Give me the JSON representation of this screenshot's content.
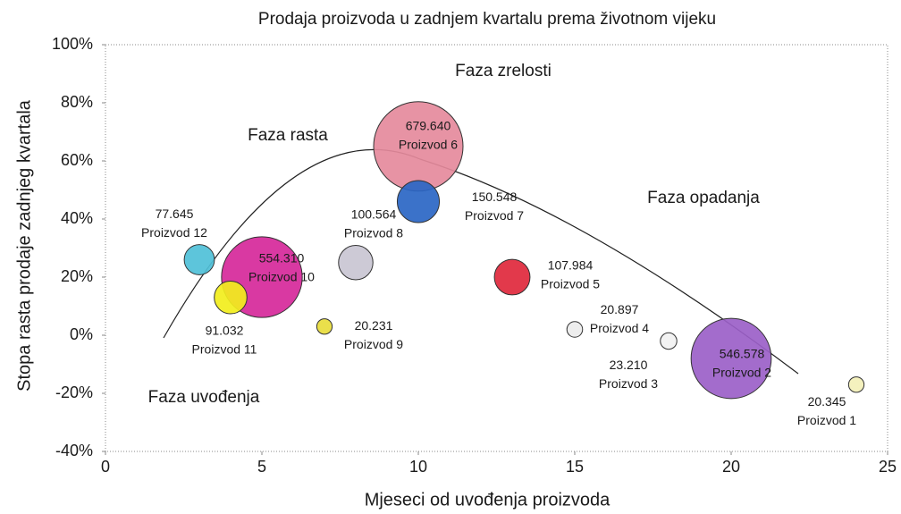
{
  "chart_data": {
    "type": "bubble",
    "title": "Prodaja proizvoda u zadnjem kvartalu prema životnom vijeku",
    "x_label": "Mjeseci od uvođenja proizvoda",
    "y_label": "Stopa rasta prodaje zadnjeg kvartala",
    "annotations": [
      "Faza zrelosti",
      "Faza rasta",
      "Faza opadanja",
      "Faza uvođenja"
    ],
    "xlim": [
      0,
      25
    ],
    "xticks": [
      0,
      5,
      10,
      15,
      20,
      25
    ],
    "ylim": [
      -40,
      100
    ],
    "yticks": [
      {
        "value": -40,
        "label": "-40%"
      },
      {
        "value": -20,
        "label": "-20%"
      },
      {
        "value": 0,
        "label": "0%"
      },
      {
        "value": 20,
        "label": "20%"
      },
      {
        "value": 40,
        "label": "40%"
      },
      {
        "value": 60,
        "label": "60%"
      },
      {
        "value": 80,
        "label": "80%"
      },
      {
        "value": 100,
        "label": "100%"
      }
    ],
    "series": [
      {
        "name": "Proizvod 1",
        "color": "#f3f0b8",
        "x": [
          24
        ],
        "values": [
          -17
        ],
        "sizes": [
          20345
        ],
        "size_labels": [
          "20.345"
        ]
      },
      {
        "name": "Proizvod 2",
        "color": "#9b5fc8",
        "x": [
          20
        ],
        "values": [
          -8
        ],
        "sizes": [
          546578
        ],
        "size_labels": [
          "546.578"
        ]
      },
      {
        "name": "Proizvod 3",
        "color": "#f2f2f2",
        "x": [
          18
        ],
        "values": [
          -2
        ],
        "sizes": [
          23210
        ],
        "size_labels": [
          "23.210"
        ]
      },
      {
        "name": "Proizvod 4",
        "color": "#ececec",
        "x": [
          15
        ],
        "values": [
          2
        ],
        "sizes": [
          20897
        ],
        "size_labels": [
          "20.897"
        ]
      },
      {
        "name": "Proizvod 5",
        "color": "#e0283c",
        "x": [
          13
        ],
        "values": [
          20
        ],
        "sizes": [
          107984
        ],
        "size_labels": [
          "107.984"
        ]
      },
      {
        "name": "Proizvod 6",
        "color": "#e58a9c",
        "x": [
          10
        ],
        "values": [
          65
        ],
        "sizes": [
          679640
        ],
        "size_labels": [
          "679.640"
        ]
      },
      {
        "name": "Proizvod 7",
        "color": "#2a66c4",
        "x": [
          10
        ],
        "values": [
          46
        ],
        "sizes": [
          150548
        ],
        "size_labels": [
          "150.548"
        ]
      },
      {
        "name": "Proizvod 8",
        "color": "#c9c6d2",
        "x": [
          8
        ],
        "values": [
          25
        ],
        "sizes": [
          100564
        ],
        "size_labels": [
          "100.564"
        ]
      },
      {
        "name": "Proizvod 9",
        "color": "#e8dc3c",
        "x": [
          7
        ],
        "values": [
          3
        ],
        "sizes": [
          20231
        ],
        "size_labels": [
          "20.231"
        ]
      },
      {
        "name": "Proizvod 10",
        "color": "#d6289a",
        "x": [
          5
        ],
        "values": [
          20
        ],
        "sizes": [
          554310
        ],
        "size_labels": [
          "554.310"
        ]
      },
      {
        "name": "Proizvod 11",
        "color": "#f2ee1c",
        "x": [
          4
        ],
        "values": [
          13
        ],
        "sizes": [
          91032
        ],
        "size_labels": [
          "91.032"
        ]
      },
      {
        "name": "Proizvod 12",
        "color": "#4fc0d8",
        "x": [
          3
        ],
        "values": [
          26
        ],
        "sizes": [
          77645
        ],
        "size_labels": [
          "77.645"
        ]
      }
    ]
  }
}
